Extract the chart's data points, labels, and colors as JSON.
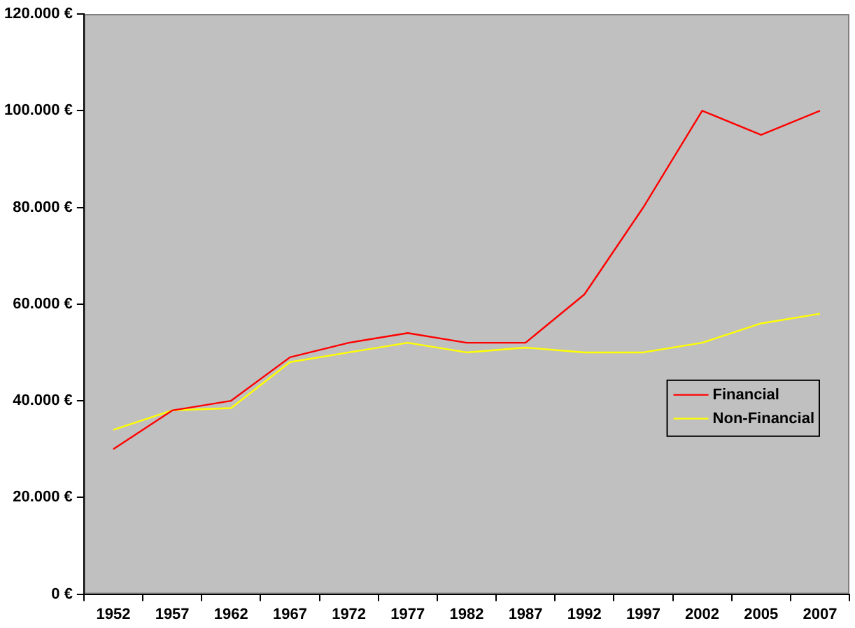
{
  "chart_data": {
    "type": "line",
    "categories": [
      "1952",
      "1957",
      "1962",
      "1967",
      "1972",
      "1977",
      "1982",
      "1987",
      "1992",
      "1997",
      "2002",
      "2005",
      "2007"
    ],
    "series": [
      {
        "name": "Financial",
        "color": "#ff0000",
        "values": [
          30000,
          38000,
          40000,
          49000,
          52000,
          54000,
          52000,
          52000,
          62000,
          80000,
          100000,
          95000,
          100000
        ]
      },
      {
        "name": "Non-Financial",
        "color": "#ffff00",
        "values": [
          34000,
          38000,
          38500,
          48000,
          50000,
          52000,
          50000,
          51000,
          50000,
          50000,
          52000,
          56000,
          58000
        ]
      }
    ],
    "ylim": [
      0,
      120000
    ],
    "yticks": [
      {
        "value": 0,
        "label": "0 €"
      },
      {
        "value": 20000,
        "label": "20.000 €"
      },
      {
        "value": 40000,
        "label": "40.000 €"
      },
      {
        "value": 60000,
        "label": "60.000 €"
      },
      {
        "value": 80000,
        "label": "80.000 €"
      },
      {
        "value": 100000,
        "label": "100.000 €"
      },
      {
        "value": 120000,
        "label": "120.000 €"
      }
    ],
    "grid": false,
    "legend": "right",
    "marker": "none",
    "line_style": "solid"
  }
}
